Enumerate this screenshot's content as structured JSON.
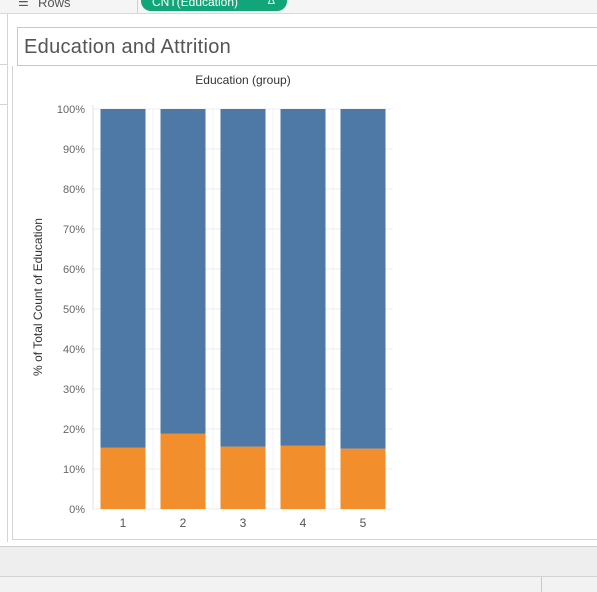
{
  "shelf": {
    "rows_label": "Rows",
    "pill_label": "CNT(Education)",
    "pill_delta": "Δ",
    "pill_color": "#13a57a"
  },
  "title": "Education and Attrition",
  "chart_data": {
    "type": "bar",
    "stacked": true,
    "column_header": "Education (group)",
    "ylabel": "% of Total Count of Education",
    "xlabel": "",
    "categories": [
      "1",
      "2",
      "3",
      "4",
      "5"
    ],
    "ylim": [
      0,
      100
    ],
    "y_ticks": [
      "0%",
      "10%",
      "20%",
      "30%",
      "40%",
      "50%",
      "60%",
      "70%",
      "80%",
      "90%",
      "100%"
    ],
    "series": [
      {
        "values": [
          15.3,
          18.8,
          15.6,
          15.8,
          15.1
        ],
        "color": "#f28e2b"
      },
      {
        "values": [
          84.7,
          81.2,
          84.4,
          84.2,
          84.9
        ],
        "color": "#4e79a7"
      }
    ],
    "grid": true,
    "legend": "none"
  }
}
